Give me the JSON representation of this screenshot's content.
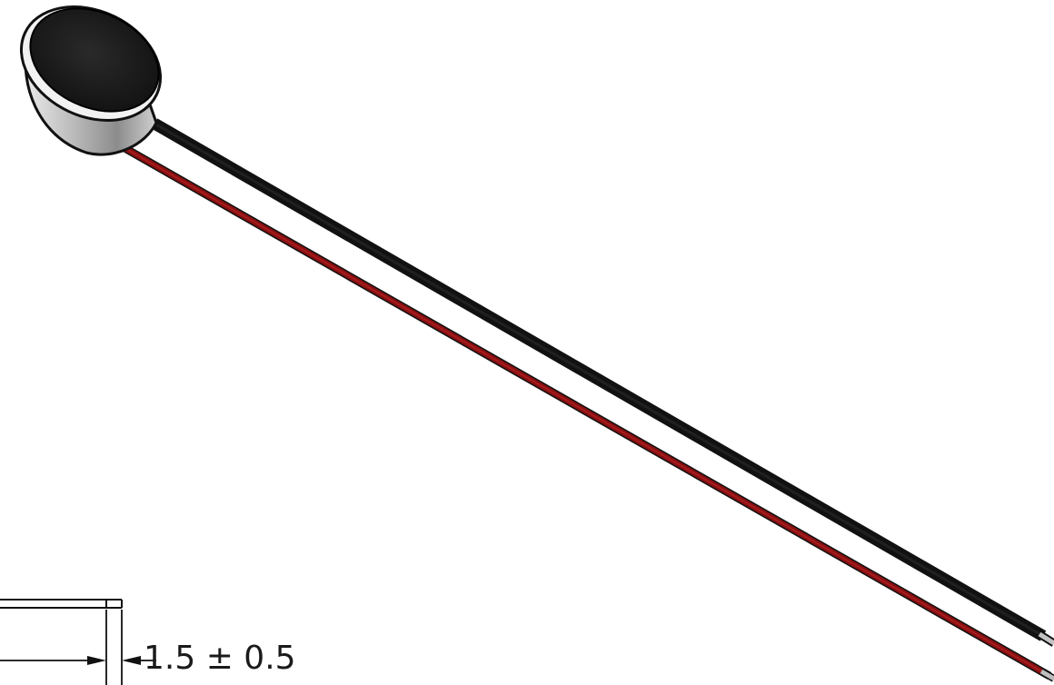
{
  "drawing": {
    "component": "electret-microphone-capsule",
    "wire_colors": {
      "black": "#111111",
      "red": "#8b0f10"
    },
    "capsule_colors": {
      "face": "#1b1b1b",
      "body": "#a9a9a9"
    },
    "dimension_label": "1.5 ± 0.5"
  }
}
